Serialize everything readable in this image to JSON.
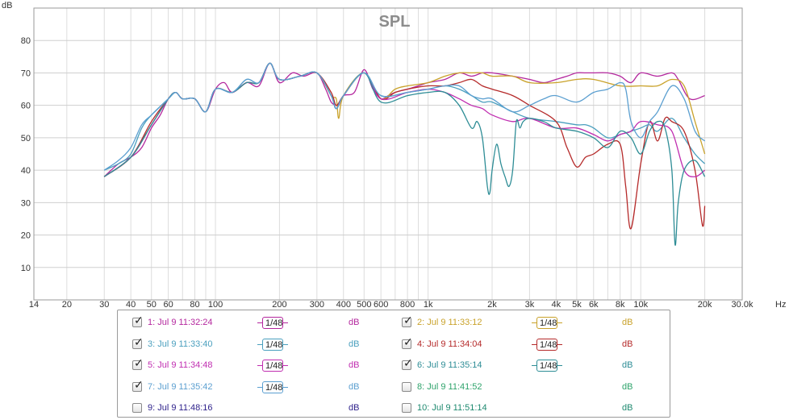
{
  "chart_data": {
    "type": "line",
    "title": "SPL",
    "ylabel": "dB",
    "xlabel": "Hz",
    "x_scale": "log",
    "xlim": [
      14,
      30000
    ],
    "ylim": [
      0,
      90
    ],
    "grid": true,
    "x_ticks": [
      "14",
      "20",
      "30",
      "40",
      "50",
      "60",
      "80",
      "100",
      "200",
      "300",
      "400",
      "500",
      "600",
      "800",
      "1k",
      "2k",
      "3k",
      "4k",
      "5k",
      "6k",
      "8k",
      "10k",
      "20k",
      "30.0k"
    ],
    "x_tick_values": [
      14,
      20,
      30,
      40,
      50,
      60,
      80,
      100,
      200,
      300,
      400,
      500,
      600,
      800,
      1000,
      2000,
      3000,
      4000,
      5000,
      6000,
      8000,
      10000,
      20000,
      30000
    ],
    "y_ticks": [
      "10",
      "20",
      "30",
      "40",
      "50",
      "60",
      "70",
      "80"
    ],
    "y_tick_values": [
      10,
      20,
      30,
      40,
      50,
      60,
      70,
      80
    ],
    "series": [
      {
        "name": "1: Jul 9 11:32:24",
        "color": "#b4279e",
        "x": [
          30,
          35,
          40,
          45,
          50,
          55,
          60,
          65,
          70,
          80,
          90,
          100,
          110,
          120,
          140,
          160,
          180,
          200,
          230,
          260,
          300,
          330,
          350,
          370,
          380,
          400,
          450,
          500,
          550,
          600,
          650,
          700,
          800,
          900,
          1000,
          1200,
          1400,
          1600,
          1800,
          2000,
          2500,
          3000,
          3500,
          4000,
          4500,
          5000,
          5500,
          6000,
          7000,
          8000,
          9000,
          10000,
          12000,
          14000,
          15000,
          17000,
          20000
        ],
        "y": [
          38,
          42,
          44,
          47,
          53,
          57,
          62,
          64,
          62,
          62,
          58,
          65,
          67,
          64,
          67,
          66,
          73,
          67,
          70,
          69,
          70,
          65,
          61,
          60,
          60,
          63,
          64,
          71,
          65,
          62,
          63,
          64,
          65,
          66,
          67,
          68,
          70,
          69,
          70,
          70,
          69,
          68,
          67,
          68,
          69,
          70,
          70,
          70,
          70,
          69,
          67,
          70,
          69,
          70,
          68,
          62,
          63
        ]
      },
      {
        "name": "2: Jul 9 11:33:12",
        "color": "#c9a22a",
        "x": [
          30,
          40,
          50,
          60,
          65,
          70,
          80,
          90,
          100,
          120,
          140,
          160,
          180,
          200,
          250,
          300,
          350,
          370,
          380,
          400,
          500,
          600,
          700,
          800,
          1000,
          1200,
          1400,
          1600,
          1800,
          2000,
          2500,
          3000,
          4000,
          5000,
          6000,
          8000,
          10000,
          12000,
          14000,
          16000,
          18000,
          20000
        ],
        "y": [
          38,
          44,
          54,
          62,
          64,
          62,
          62,
          58,
          65,
          64,
          67,
          67,
          73,
          68,
          69,
          70,
          63,
          62,
          56,
          63,
          70,
          62,
          65,
          66,
          67,
          69,
          70,
          70,
          70,
          69,
          69,
          67,
          67,
          68,
          68,
          66,
          66,
          66,
          68,
          66,
          55,
          45
        ]
      },
      {
        "name": "3: Jul 9 11:33:40",
        "color": "#4a9fbe",
        "x": [
          30,
          35,
          40,
          45,
          50,
          60,
          65,
          70,
          80,
          90,
          100,
          120,
          140,
          160,
          180,
          200,
          250,
          300,
          350,
          370,
          400,
          500,
          600,
          800,
          1000,
          1200,
          1400,
          1600,
          1800,
          2000,
          2500,
          3000,
          4000,
          5000,
          5500,
          6000,
          7000,
          8000,
          9000,
          10000,
          11000,
          12000,
          14000,
          16000,
          18000,
          20000
        ],
        "y": [
          40,
          42,
          45,
          53,
          57,
          62,
          64,
          62,
          62,
          58,
          65,
          64,
          68,
          67,
          73,
          68,
          69,
          70,
          63,
          59,
          63,
          70,
          63,
          64,
          65,
          66,
          65,
          63,
          61,
          61,
          58,
          56,
          55,
          54,
          54,
          53,
          50,
          51,
          52,
          53,
          54,
          52,
          56,
          50,
          45,
          42
        ]
      },
      {
        "name": "4: Jul 9 11:34:04",
        "color": "#b52a2a",
        "x": [
          30,
          40,
          50,
          60,
          65,
          70,
          80,
          90,
          100,
          120,
          140,
          160,
          180,
          200,
          250,
          300,
          350,
          370,
          400,
          500,
          600,
          700,
          800,
          1000,
          1200,
          1400,
          1600,
          1800,
          2000,
          2500,
          3000,
          4000,
          4500,
          5000,
          5500,
          6000,
          7000,
          8000,
          8500,
          9000,
          10000,
          11000,
          12000,
          13000,
          14000,
          16000,
          18000,
          19500,
          20000
        ],
        "y": [
          38,
          44,
          55,
          62,
          64,
          62,
          62,
          58,
          65,
          64,
          67,
          67,
          73,
          68,
          69,
          70,
          64,
          60,
          63,
          70,
          62,
          64,
          65,
          66,
          66,
          67,
          68,
          66,
          65,
          63,
          60,
          55,
          47,
          41,
          44,
          45,
          48,
          48,
          35,
          22,
          42,
          55,
          49,
          56,
          55,
          52,
          40,
          23,
          29
        ]
      },
      {
        "name": "5: Jul 9 11:34:48",
        "color": "#c02db0",
        "x": [
          30,
          40,
          50,
          60,
          65,
          70,
          80,
          90,
          100,
          120,
          140,
          160,
          180,
          200,
          250,
          300,
          350,
          370,
          400,
          500,
          600,
          800,
          1000,
          1200,
          1400,
          1600,
          1800,
          2000,
          2500,
          3000,
          4000,
          5000,
          6000,
          7000,
          8000,
          9000,
          10000,
          12000,
          14000,
          16000,
          18000,
          20000
        ],
        "y": [
          38,
          44,
          54,
          62,
          64,
          62,
          62,
          58,
          65,
          64,
          67,
          67,
          73,
          68,
          69,
          70,
          63,
          59,
          63,
          70,
          62,
          64,
          65,
          64,
          62,
          60,
          59,
          57,
          55,
          56,
          53,
          53,
          51,
          49,
          51,
          52,
          55,
          54,
          52,
          40,
          38,
          40
        ]
      },
      {
        "name": "6: Jul 9 11:35:14",
        "color": "#2e8d96",
        "x": [
          30,
          40,
          50,
          60,
          65,
          70,
          80,
          90,
          100,
          120,
          140,
          160,
          180,
          200,
          250,
          300,
          350,
          370,
          400,
          500,
          600,
          800,
          1000,
          1200,
          1400,
          1600,
          1700,
          1800,
          1900,
          1950,
          2000,
          2100,
          2200,
          2300,
          2400,
          2500,
          2600,
          2700,
          2800,
          3000,
          3500,
          4000,
          5000,
          6000,
          7000,
          8000,
          9000,
          10000,
          11000,
          12000,
          13000,
          14000,
          14500,
          15000,
          16000,
          18000,
          20000
        ],
        "y": [
          38,
          44,
          54,
          62,
          64,
          62,
          62,
          58,
          65,
          64,
          67,
          67,
          73,
          68,
          69,
          70,
          63,
          59,
          63,
          70,
          61,
          63,
          64,
          64,
          60,
          53,
          55,
          50,
          35,
          33,
          40,
          48,
          42,
          38,
          35,
          40,
          55,
          53,
          55,
          56,
          55,
          53,
          52,
          50,
          47,
          52,
          50,
          45,
          52,
          55,
          53,
          40,
          17,
          30,
          40,
          43,
          38
        ]
      },
      {
        "name": "7: Jul 9 11:35:42",
        "color": "#5b9fd0",
        "x": [
          30,
          35,
          40,
          45,
          50,
          60,
          65,
          70,
          80,
          90,
          100,
          120,
          140,
          160,
          180,
          200,
          250,
          300,
          350,
          370,
          400,
          500,
          600,
          800,
          1000,
          1200,
          1400,
          1600,
          1800,
          2000,
          2500,
          3000,
          3500,
          4000,
          5000,
          6000,
          7000,
          8000,
          8500,
          9000,
          10000,
          11000,
          12000,
          14000,
          16000,
          18000,
          20000
        ],
        "y": [
          40,
          43,
          47,
          54,
          57,
          62,
          64,
          62,
          62,
          58,
          65,
          64,
          68,
          67,
          73,
          68,
          69,
          70,
          63,
          59,
          63,
          70,
          63,
          64,
          65,
          66,
          66,
          63,
          62,
          62,
          58,
          60,
          62,
          63,
          61,
          64,
          65,
          67,
          65,
          55,
          50,
          55,
          58,
          66,
          62,
          52,
          49
        ]
      },
      {
        "name": "8: Jul 9 11:41:52",
        "color": "#2ea36b",
        "x": [],
        "y": []
      },
      {
        "name": "9: Jul 9 11:48:16",
        "color": "#2c1f8a",
        "x": [],
        "y": []
      },
      {
        "name": "10: Jul 9 11:51:14",
        "color": "#1f8a70",
        "x": [],
        "y": []
      }
    ]
  },
  "legend": [
    {
      "label": "1: Jul 9 11:32:24",
      "checked": true,
      "smoothing": "1/48",
      "unit": "dB",
      "color": "#b4279e"
    },
    {
      "label": "2: Jul 9 11:33:12",
      "checked": true,
      "smoothing": "1/48",
      "unit": "dB",
      "color": "#c9a22a"
    },
    {
      "label": "3: Jul 9 11:33:40",
      "checked": true,
      "smoothing": "1/48",
      "unit": "dB",
      "color": "#4a9fbe"
    },
    {
      "label": "4: Jul 9 11:34:04",
      "checked": true,
      "smoothing": "1/48",
      "unit": "dB",
      "color": "#b52a2a"
    },
    {
      "label": "5: Jul 9 11:34:48",
      "checked": true,
      "smoothing": "1/48",
      "unit": "dB",
      "color": "#c02db0"
    },
    {
      "label": "6: Jul 9 11:35:14",
      "checked": true,
      "smoothing": "1/48",
      "unit": "dB",
      "color": "#2e8d96"
    },
    {
      "label": "7: Jul 9 11:35:42",
      "checked": true,
      "smoothing": "1/48",
      "unit": "dB",
      "color": "#5b9fd0"
    },
    {
      "label": "8: Jul 9 11:41:52",
      "checked": false,
      "smoothing": "",
      "unit": "dB",
      "color": "#2ea36b"
    },
    {
      "label": "9: Jul 9 11:48:16",
      "checked": false,
      "smoothing": "",
      "unit": "dB",
      "color": "#2c1f8a"
    },
    {
      "label": "10: Jul 9 11:51:14",
      "checked": false,
      "smoothing": "",
      "unit": "dB",
      "color": "#1f8a70"
    }
  ],
  "checkmark_glyph": "✓"
}
